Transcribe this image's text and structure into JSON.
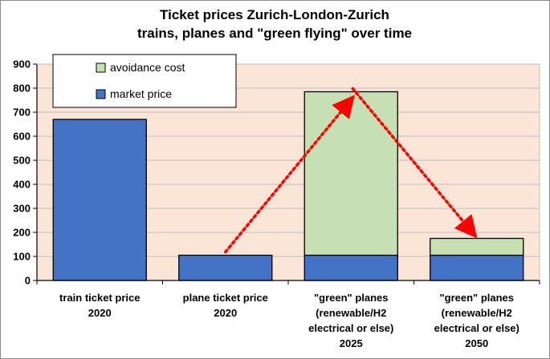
{
  "chart_data": {
    "type": "bar",
    "stacked": true,
    "title": [
      "Ticket prices Zurich-London-Zurich",
      "trains, planes and \"green flying\" over time"
    ],
    "categories": [
      [
        "train ticket price",
        "2020"
      ],
      [
        "plane ticket price",
        "2020"
      ],
      [
        "\"green\" planes",
        "(renewable/H2",
        "electrical or else)",
        "2025"
      ],
      [
        "\"green\" planes",
        "(renewable/H2",
        "electrical or else)",
        "2050"
      ]
    ],
    "series": [
      {
        "name": "market price",
        "color": "#4472c4",
        "values": [
          670,
          105,
          105,
          105
        ]
      },
      {
        "name": "avoidance cost",
        "color": "#c6e0b4",
        "values": [
          0,
          0,
          680,
          70
        ]
      }
    ],
    "ylim": [
      0,
      900
    ],
    "yticks": [
      0,
      100,
      200,
      300,
      400,
      500,
      600,
      700,
      800,
      900
    ],
    "grid": true,
    "plot_background": "#fbe5d6",
    "legend_position": "top-left",
    "annotations": [
      {
        "type": "dotted-arrow",
        "color": "#ff0000",
        "from": {
          "category": 1,
          "value": 105
        },
        "to": {
          "category": 2,
          "value": 785
        }
      },
      {
        "type": "dotted-arrow",
        "color": "#ff0000",
        "from": {
          "category": 2,
          "value": 785
        },
        "to": {
          "category": 3,
          "value": 175
        }
      }
    ]
  }
}
